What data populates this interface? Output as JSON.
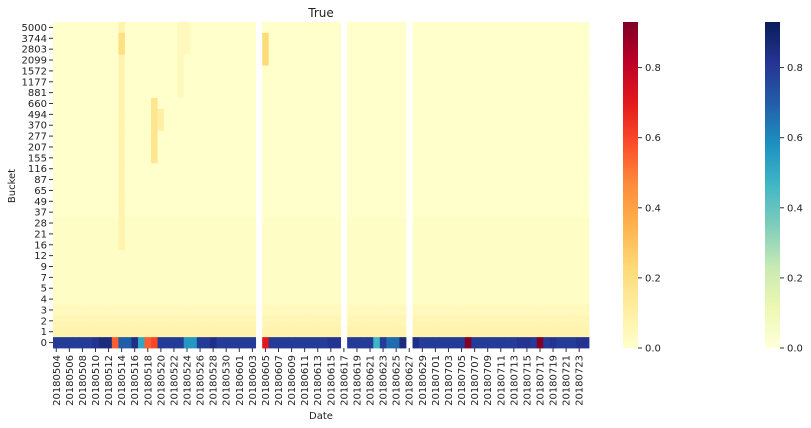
{
  "chart_data": {
    "type": "heatmap",
    "title": "True",
    "xlabel": "Date",
    "ylabel": "Bucket",
    "x_tick_labels": [
      "20180504",
      "20180506",
      "20180508",
      "20180510",
      "20180512",
      "20180514",
      "20180516",
      "20180518",
      "20180520",
      "20180522",
      "20180524",
      "20180526",
      "20180528",
      "20180530",
      "20180601",
      "20180603",
      "20180605",
      "20180607",
      "20180609",
      "20180611",
      "20180613",
      "20180615",
      "20180617",
      "20180619",
      "20180621",
      "20180623",
      "20180625",
      "20180627",
      "20180629",
      "20180701",
      "20180703",
      "20180705",
      "20180707",
      "20180709",
      "20180711",
      "20180713",
      "20180715",
      "20180717",
      "20180719",
      "20180721",
      "20180723"
    ],
    "y_tick_labels": [
      "5000",
      "3744",
      "2803",
      "2099",
      "1572",
      "1177",
      "881",
      "660",
      "494",
      "370",
      "277",
      "207",
      "155",
      "116",
      "87",
      "65",
      "49",
      "37",
      "28",
      "21",
      "16",
      "12",
      "9",
      "7",
      "5",
      "4",
      "3",
      "2",
      "1",
      "0"
    ],
    "num_dates": 82,
    "value_range": [
      0,
      0.93
    ],
    "colorbars": [
      {
        "colormap": "YlOrRd",
        "ticks": [
          "0.0",
          "0.2",
          "0.4",
          "0.6",
          "0.8"
        ]
      },
      {
        "colormap": "YlGnBu",
        "ticks": [
          "0.0",
          "0.2",
          "0.4",
          "0.6",
          "0.8"
        ]
      }
    ],
    "missing_columns": [
      31,
      44,
      54
    ],
    "bucket0_values": [
      0.85,
      0.85,
      0.85,
      0.85,
      0.85,
      0.85,
      0.88,
      0.92,
      0.92,
      0.55,
      0.75,
      0.75,
      0.9,
      0.55,
      0.55,
      0.6,
      0.85,
      0.85,
      0.85,
      0.85,
      0.6,
      0.6,
      0.85,
      0.85,
      0.9,
      0.85,
      0.85,
      0.85,
      0.85,
      0.85,
      0.85,
      null,
      0.7,
      0.85,
      0.85,
      0.85,
      0.85,
      0.85,
      0.85,
      0.85,
      0.85,
      0.85,
      0.88,
      0.88,
      null,
      0.85,
      0.85,
      0.85,
      0.85,
      0.5,
      0.85,
      0.92,
      0.92,
      0.92,
      null,
      0.9,
      0.85,
      0.85,
      0.85,
      0.85,
      0.85,
      0.85,
      0.85,
      0.85,
      0.85,
      0.85,
      0.85,
      0.85,
      0.85,
      0.85,
      0.85,
      0.88,
      0.88,
      0.85,
      0.85,
      0.85,
      0.88,
      0.85,
      0.85,
      0.85,
      0.88,
      0.88
    ],
    "bucket0_scale": [
      2,
      2,
      2,
      2,
      2,
      2,
      2,
      2,
      2,
      2,
      1,
      1,
      2,
      1,
      1,
      1,
      2,
      2,
      2,
      2,
      2,
      2,
      2,
      2,
      2,
      2,
      2,
      2,
      2,
      2,
      2,
      0,
      1,
      2,
      2,
      2,
      2,
      2,
      2,
      2,
      2,
      2,
      2,
      2,
      0,
      2,
      2,
      2,
      2,
      2,
      2,
      2,
      2,
      2,
      0,
      1,
      2,
      2,
      2,
      2,
      2,
      2,
      2,
      2,
      2,
      2,
      2,
      2,
      2,
      2,
      2,
      2,
      2,
      2,
      1,
      2,
      2,
      2,
      2,
      2,
      2,
      2
    ]
  }
}
